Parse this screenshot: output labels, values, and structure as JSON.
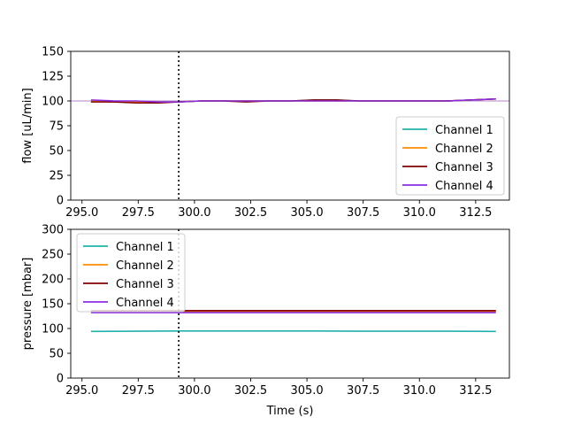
{
  "chart_data": [
    {
      "type": "line",
      "ylabel": "flow [uL/min]",
      "xlabel": "",
      "xlim": [
        294.5,
        314.0
      ],
      "ylim": [
        0,
        150
      ],
      "xticks": [
        295.0,
        297.5,
        300.0,
        302.5,
        305.0,
        307.5,
        310.0,
        312.5
      ],
      "xtick_labels": [
        "295.0",
        "297.5",
        "300.0",
        "302.5",
        "305.0",
        "307.5",
        "310.0",
        "312.5"
      ],
      "yticks": [
        0,
        25,
        50,
        75,
        100,
        125,
        150
      ],
      "ytick_labels": [
        "0",
        "25",
        "50",
        "75",
        "100",
        "125",
        "150"
      ],
      "reference_line_y": 100,
      "reference_line_color": "#9b59b6",
      "marker_x": 299.3,
      "legend_position": "lower right",
      "x": [
        295.4,
        296.4,
        297.4,
        298.4,
        299.3,
        300.3,
        301.3,
        302.3,
        303.3,
        304.3,
        305.3,
        306.3,
        307.3,
        308.3,
        309.3,
        310.3,
        311.3,
        312.3,
        313.4
      ],
      "series": [
        {
          "name": "Channel 1",
          "color": "#20b2aa",
          "values": [
            100,
            99,
            99,
            99,
            99,
            100,
            100,
            100,
            100,
            100,
            101,
            101,
            100,
            100,
            100,
            100,
            100,
            101,
            102
          ]
        },
        {
          "name": "Channel 2",
          "color": "#ff8c00",
          "values": [
            100,
            99,
            99,
            99,
            99,
            100,
            100,
            100,
            100,
            100,
            100,
            100,
            100,
            100,
            100,
            100,
            100,
            101,
            102
          ]
        },
        {
          "name": "Channel 3",
          "color": "#800000",
          "values": [
            99,
            99,
            98,
            98,
            99,
            100,
            100,
            99,
            100,
            100,
            101,
            101,
            100,
            100,
            100,
            100,
            100,
            101,
            102
          ]
        },
        {
          "name": "Channel 4",
          "color": "#8a2be2",
          "values": [
            101,
            100,
            100,
            99,
            99,
            100,
            100,
            100,
            100,
            100,
            100,
            100,
            100,
            100,
            100,
            100,
            100,
            101,
            102
          ]
        }
      ]
    },
    {
      "type": "line",
      "ylabel": "pressure [mbar]",
      "xlabel": "Time (s)",
      "xlim": [
        294.5,
        314.0
      ],
      "ylim": [
        0,
        300
      ],
      "xticks": [
        295.0,
        297.5,
        300.0,
        302.5,
        305.0,
        307.5,
        310.0,
        312.5
      ],
      "xtick_labels": [
        "295.0",
        "297.5",
        "300.0",
        "302.5",
        "305.0",
        "307.5",
        "310.0",
        "312.5"
      ],
      "yticks": [
        0,
        50,
        100,
        150,
        200,
        250,
        300
      ],
      "ytick_labels": [
        "0",
        "50",
        "100",
        "150",
        "200",
        "250",
        "300"
      ],
      "marker_x": 299.3,
      "legend_position": "upper left",
      "x": [
        295.4,
        297.4,
        299.3,
        301.3,
        303.3,
        305.3,
        307.3,
        309.3,
        311.3,
        313.4
      ],
      "series": [
        {
          "name": "Channel 1",
          "color": "#20b2aa",
          "values": [
            94,
            94.5,
            95,
            95,
            95,
            95,
            94.5,
            94.5,
            94.5,
            94
          ]
        },
        {
          "name": "Channel 2",
          "color": "#ff8c00",
          "values": [
            134,
            134,
            134,
            134,
            134,
            134,
            134,
            134,
            134,
            134
          ]
        },
        {
          "name": "Channel 3",
          "color": "#800000",
          "values": [
            136,
            136,
            136,
            136,
            136,
            136,
            136,
            136,
            136,
            136
          ]
        },
        {
          "name": "Channel 4",
          "color": "#8a2be2",
          "values": [
            132,
            132,
            132,
            132,
            132,
            132,
            132,
            132,
            132,
            132
          ]
        }
      ]
    }
  ]
}
